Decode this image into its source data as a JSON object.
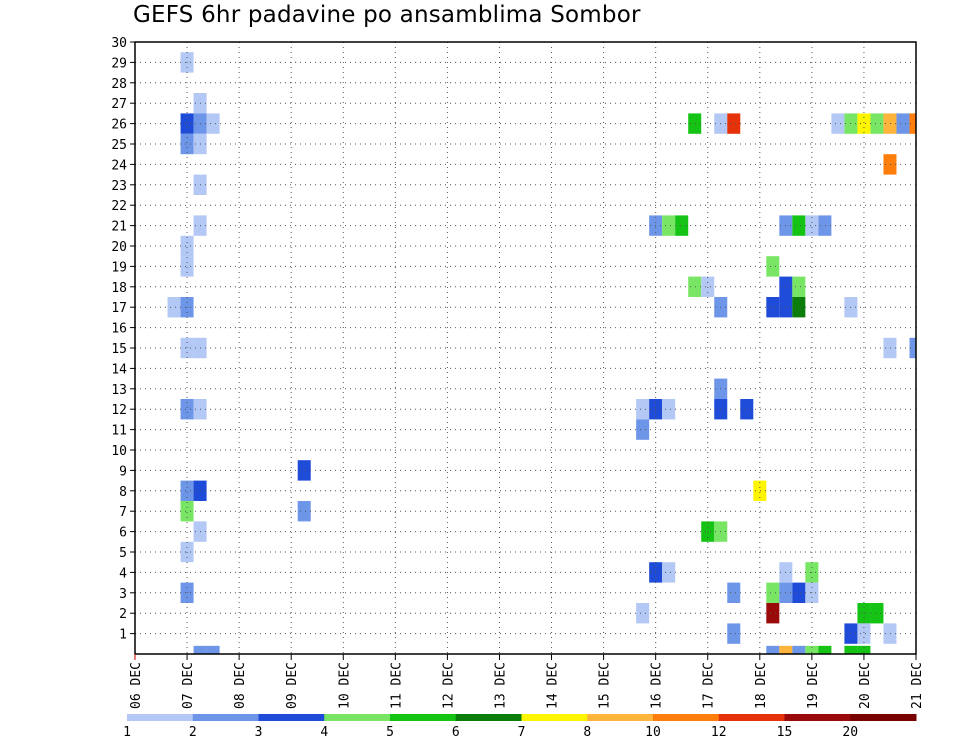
{
  "chart_data": {
    "type": "heatmap",
    "title": "GEFS 6hr padavine po ansamblima Sombor",
    "xlabel": "",
    "ylabel": "",
    "x_range": [
      0,
      15
    ],
    "y_range": [
      0,
      30
    ],
    "x_tick_labels": [
      "06 DEC",
      "07 DEC",
      "08 DEC",
      "09 DEC",
      "10 DEC",
      "11 DEC",
      "12 DEC",
      "13 DEC",
      "14 DEC",
      "15 DEC",
      "16 DEC",
      "17 DEC",
      "18 DEC",
      "19 DEC",
      "20 DEC",
      "21 DEC"
    ],
    "y_tick_labels": [
      "1",
      "2",
      "3",
      "4",
      "5",
      "6",
      "7",
      "8",
      "9",
      "10",
      "11",
      "12",
      "13",
      "14",
      "15",
      "16",
      "17",
      "18",
      "19",
      "20",
      "21",
      "22",
      "23",
      "24",
      "25",
      "26",
      "27",
      "28",
      "29",
      "30"
    ],
    "grid": true,
    "colorbar": {
      "colors": [
        "#b4c8f5",
        "#6e96e8",
        "#1e4bd7",
        "#78e664",
        "#14c314",
        "#0a7d0a",
        "#fff500",
        "#ffb43c",
        "#ff7d0a",
        "#e6320a",
        "#9b0a0a",
        "#780000"
      ],
      "labels": [
        "1",
        "2",
        "3",
        "4",
        "5",
        "6",
        "7",
        "8",
        "10",
        "12",
        "15",
        "20"
      ]
    },
    "cells": [
      {
        "x": 1.0,
        "m": 29,
        "c": 0
      },
      {
        "x": 1.25,
        "m": 27,
        "c": 0
      },
      {
        "x": 1.0,
        "m": 26,
        "c": 2
      },
      {
        "x": 1.25,
        "m": 26,
        "c": 1
      },
      {
        "x": 1.5,
        "m": 26,
        "c": 0
      },
      {
        "x": 1.0,
        "m": 25,
        "c": 1
      },
      {
        "x": 1.25,
        "m": 25,
        "c": 0
      },
      {
        "x": 1.25,
        "m": 23,
        "c": 0
      },
      {
        "x": 1.25,
        "m": 21,
        "c": 0
      },
      {
        "x": 1.0,
        "m": 20,
        "c": 0
      },
      {
        "x": 1.0,
        "m": 19,
        "c": 0
      },
      {
        "x": 0.75,
        "m": 17,
        "c": 0
      },
      {
        "x": 1.0,
        "m": 17,
        "c": 1
      },
      {
        "x": 1.0,
        "m": 15,
        "c": 0
      },
      {
        "x": 1.25,
        "m": 15,
        "c": 0
      },
      {
        "x": 1.0,
        "m": 12,
        "c": 1
      },
      {
        "x": 1.25,
        "m": 12,
        "c": 0
      },
      {
        "x": 3.25,
        "m": 9,
        "c": 2
      },
      {
        "x": 1.0,
        "m": 8,
        "c": 1
      },
      {
        "x": 1.25,
        "m": 8,
        "c": 2
      },
      {
        "x": 1.0,
        "m": 7,
        "c": 3
      },
      {
        "x": 3.25,
        "m": 7,
        "c": 1
      },
      {
        "x": 1.25,
        "m": 6,
        "c": 0
      },
      {
        "x": 1.0,
        "m": 5,
        "c": 0
      },
      {
        "x": 1.0,
        "m": 3,
        "c": 1
      },
      {
        "x": 1.25,
        "m": 0,
        "c": 1
      },
      {
        "x": 1.5,
        "m": 0,
        "c": 1
      },
      {
        "x": 10.75,
        "m": 26,
        "c": 4
      },
      {
        "x": 11.25,
        "m": 26,
        "c": 0
      },
      {
        "x": 11.5,
        "m": 26,
        "c": 9
      },
      {
        "x": 13.5,
        "m": 26,
        "c": 0
      },
      {
        "x": 13.75,
        "m": 26,
        "c": 3
      },
      {
        "x": 14.0,
        "m": 26,
        "c": 6
      },
      {
        "x": 14.25,
        "m": 26,
        "c": 3
      },
      {
        "x": 14.5,
        "m": 26,
        "c": 7
      },
      {
        "x": 14.75,
        "m": 26,
        "c": 1
      },
      {
        "x": 15.0,
        "m": 26,
        "c": 8
      },
      {
        "x": 14.5,
        "m": 24,
        "c": 8
      },
      {
        "x": 10.0,
        "m": 21,
        "c": 1
      },
      {
        "x": 10.25,
        "m": 21,
        "c": 3
      },
      {
        "x": 10.5,
        "m": 21,
        "c": 4
      },
      {
        "x": 12.5,
        "m": 21,
        "c": 1
      },
      {
        "x": 12.75,
        "m": 21,
        "c": 4
      },
      {
        "x": 13.0,
        "m": 21,
        "c": 0
      },
      {
        "x": 13.25,
        "m": 21,
        "c": 1
      },
      {
        "x": 12.25,
        "m": 19,
        "c": 3
      },
      {
        "x": 10.75,
        "m": 18,
        "c": 3
      },
      {
        "x": 11.0,
        "m": 18,
        "c": 0
      },
      {
        "x": 12.5,
        "m": 18,
        "c": 2
      },
      {
        "x": 12.75,
        "m": 18,
        "c": 3
      },
      {
        "x": 11.25,
        "m": 17,
        "c": 1
      },
      {
        "x": 12.25,
        "m": 17,
        "c": 2
      },
      {
        "x": 12.5,
        "m": 17,
        "c": 2
      },
      {
        "x": 12.75,
        "m": 17,
        "c": 5
      },
      {
        "x": 13.75,
        "m": 17,
        "c": 0
      },
      {
        "x": 14.5,
        "m": 15,
        "c": 0
      },
      {
        "x": 15.0,
        "m": 15,
        "c": 1
      },
      {
        "x": 11.25,
        "m": 13,
        "c": 1
      },
      {
        "x": 9.75,
        "m": 12,
        "c": 0
      },
      {
        "x": 10.0,
        "m": 12,
        "c": 2
      },
      {
        "x": 10.25,
        "m": 12,
        "c": 0
      },
      {
        "x": 11.25,
        "m": 12,
        "c": 2
      },
      {
        "x": 11.75,
        "m": 12,
        "c": 2
      },
      {
        "x": 9.75,
        "m": 11,
        "c": 1
      },
      {
        "x": 12.0,
        "m": 8,
        "c": 6
      },
      {
        "x": 11.0,
        "m": 6,
        "c": 4
      },
      {
        "x": 11.25,
        "m": 6,
        "c": 3
      },
      {
        "x": 10.0,
        "m": 4,
        "c": 2
      },
      {
        "x": 10.25,
        "m": 4,
        "c": 0
      },
      {
        "x": 12.5,
        "m": 4,
        "c": 0
      },
      {
        "x": 13.0,
        "m": 4,
        "c": 3
      },
      {
        "x": 11.5,
        "m": 3,
        "c": 1
      },
      {
        "x": 12.25,
        "m": 3,
        "c": 3
      },
      {
        "x": 12.5,
        "m": 3,
        "c": 1
      },
      {
        "x": 12.75,
        "m": 3,
        "c": 2
      },
      {
        "x": 13.0,
        "m": 3,
        "c": 0
      },
      {
        "x": 9.75,
        "m": 2,
        "c": 0
      },
      {
        "x": 12.25,
        "m": 2,
        "c": 10
      },
      {
        "x": 14.0,
        "m": 2,
        "c": 4
      },
      {
        "x": 14.25,
        "m": 2,
        "c": 4
      },
      {
        "x": 11.5,
        "m": 1,
        "c": 1
      },
      {
        "x": 13.75,
        "m": 1,
        "c": 2
      },
      {
        "x": 14.0,
        "m": 1,
        "c": 0
      },
      {
        "x": 14.5,
        "m": 1,
        "c": 0
      },
      {
        "x": 12.25,
        "m": 0,
        "c": 1
      },
      {
        "x": 12.5,
        "m": 0,
        "c": 7
      },
      {
        "x": 12.75,
        "m": 0,
        "c": 1
      },
      {
        "x": 13.0,
        "m": 0,
        "c": 3
      },
      {
        "x": 13.25,
        "m": 0,
        "c": 4
      },
      {
        "x": 13.75,
        "m": 0,
        "c": 4
      },
      {
        "x": 14.0,
        "m": 0,
        "c": 4
      }
    ]
  }
}
